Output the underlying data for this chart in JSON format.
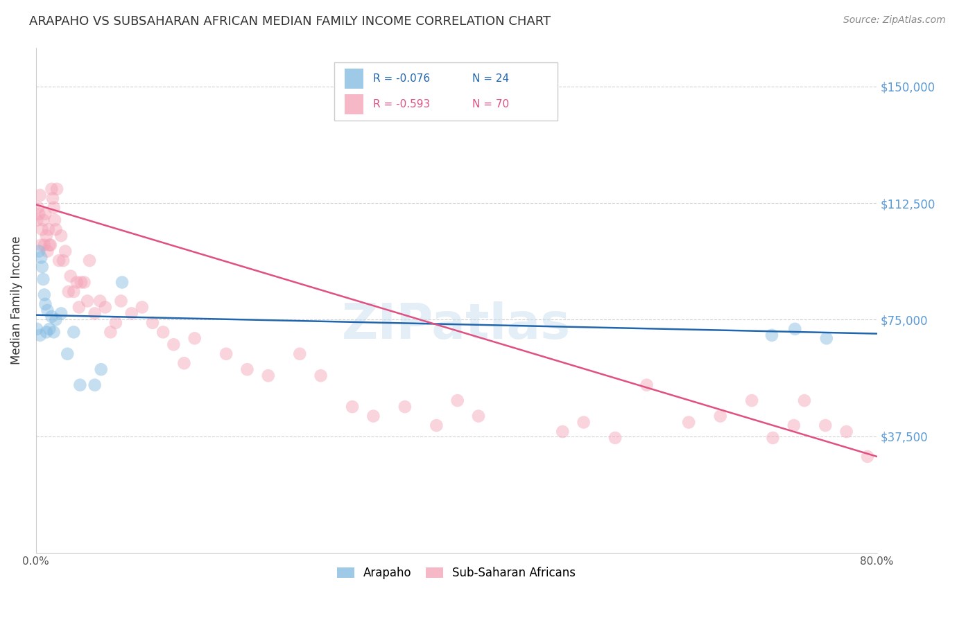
{
  "title": "ARAPAHO VS SUBSAHARAN AFRICAN MEDIAN FAMILY INCOME CORRELATION CHART",
  "source": "Source: ZipAtlas.com",
  "ylabel": "Median Family Income",
  "ytick_labels": [
    "$37,500",
    "$75,000",
    "$112,500",
    "$150,000"
  ],
  "ytick_values": [
    37500,
    75000,
    112500,
    150000
  ],
  "ymin": 0,
  "ymax": 162500,
  "xmin": 0.0,
  "xmax": 0.8,
  "watermark": "ZIPatlas",
  "blue_color": "#7fb9e0",
  "blue_line_color": "#2166ac",
  "pink_color": "#f4a0b5",
  "pink_line_color": "#e05080",
  "ytick_color": "#5b9bd5",
  "blue_scatter_x": [
    0.001,
    0.003,
    0.004,
    0.005,
    0.006,
    0.007,
    0.008,
    0.009,
    0.01,
    0.011,
    0.013,
    0.015,
    0.017,
    0.019,
    0.024,
    0.03,
    0.036,
    0.042,
    0.056,
    0.062,
    0.082,
    0.7,
    0.722,
    0.752
  ],
  "blue_scatter_y": [
    72000,
    97000,
    70000,
    95000,
    92000,
    88000,
    83000,
    80000,
    71000,
    78000,
    72000,
    76000,
    71000,
    75000,
    77000,
    64000,
    71000,
    54000,
    54000,
    59000,
    87000,
    70000,
    72000,
    69000
  ],
  "pink_scatter_x": [
    0.001,
    0.002,
    0.003,
    0.004,
    0.005,
    0.006,
    0.007,
    0.008,
    0.009,
    0.01,
    0.011,
    0.012,
    0.013,
    0.014,
    0.015,
    0.016,
    0.017,
    0.018,
    0.019,
    0.02,
    0.022,
    0.024,
    0.026,
    0.028,
    0.031,
    0.033,
    0.036,
    0.039,
    0.041,
    0.043,
    0.046,
    0.049,
    0.051,
    0.056,
    0.061,
    0.066,
    0.071,
    0.076,
    0.081,
    0.091,
    0.101,
    0.111,
    0.121,
    0.131,
    0.141,
    0.151,
    0.181,
    0.201,
    0.221,
    0.251,
    0.271,
    0.301,
    0.321,
    0.351,
    0.381,
    0.401,
    0.421,
    0.501,
    0.521,
    0.551,
    0.581,
    0.621,
    0.651,
    0.681,
    0.701,
    0.721,
    0.731,
    0.751,
    0.771,
    0.791
  ],
  "pink_scatter_y": [
    107000,
    111000,
    109000,
    115000,
    99000,
    104000,
    107000,
    99000,
    109000,
    102000,
    97000,
    104000,
    99000,
    99000,
    117000,
    114000,
    111000,
    107000,
    104000,
    117000,
    94000,
    102000,
    94000,
    97000,
    84000,
    89000,
    84000,
    87000,
    79000,
    87000,
    87000,
    81000,
    94000,
    77000,
    81000,
    79000,
    71000,
    74000,
    81000,
    77000,
    79000,
    74000,
    71000,
    67000,
    61000,
    69000,
    64000,
    59000,
    57000,
    64000,
    57000,
    47000,
    44000,
    47000,
    41000,
    49000,
    44000,
    39000,
    42000,
    37000,
    54000,
    42000,
    44000,
    49000,
    37000,
    41000,
    49000,
    41000,
    39000,
    31000
  ],
  "blue_trend_x": [
    0.0,
    0.8
  ],
  "blue_trend_y": [
    76500,
    70500
  ],
  "pink_trend_x": [
    0.0,
    0.8
  ],
  "pink_trend_y": [
    112000,
    31000
  ],
  "background_color": "#ffffff",
  "grid_color": "#cccccc",
  "title_fontsize": 13,
  "source_fontsize": 10,
  "scatter_size": 180,
  "scatter_alpha": 0.45,
  "trend_linewidth": 1.8
}
